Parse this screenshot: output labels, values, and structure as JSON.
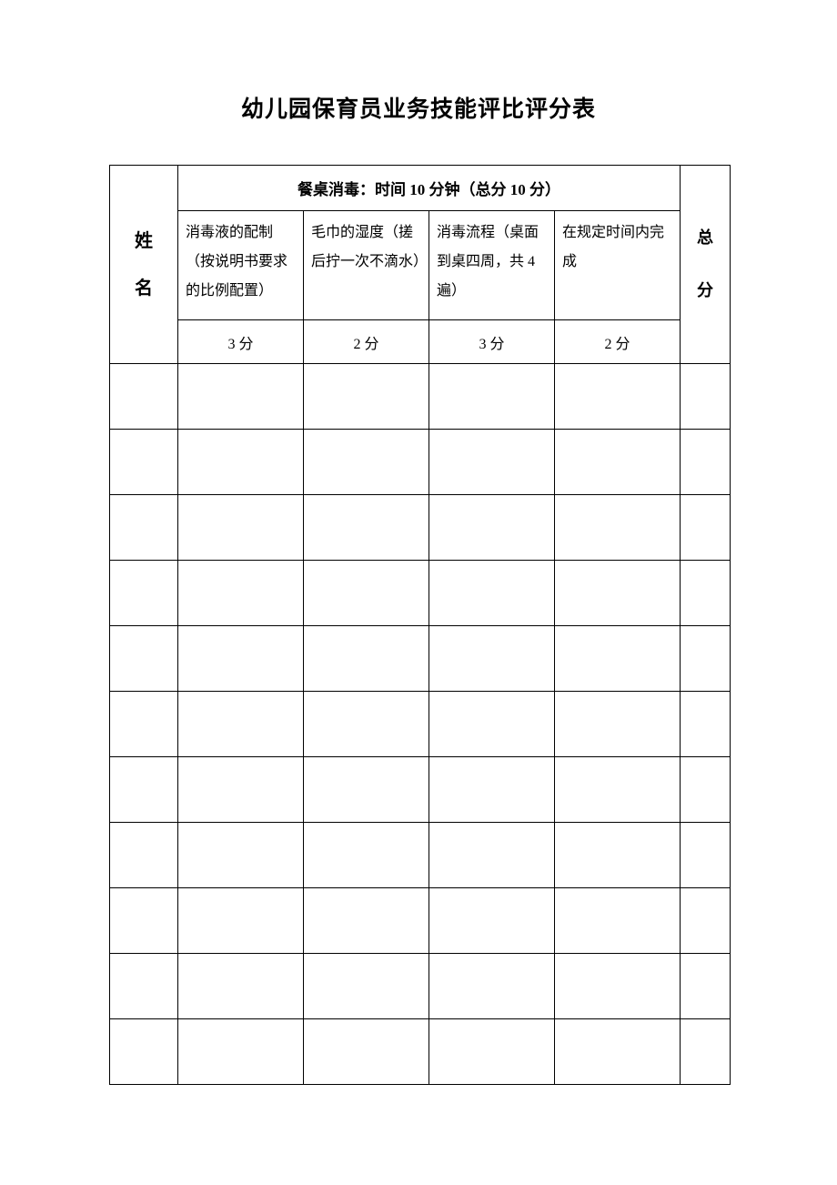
{
  "document": {
    "title": "幼儿园保育员业务技能评比评分表",
    "background_color": "#ffffff",
    "border_color": "#000000",
    "text_color": "#000000",
    "title_fontsize": 25,
    "body_fontsize": 16
  },
  "table": {
    "name_header": "姓\n名",
    "total_header": "总\n分",
    "section_header": "餐桌消毒：时间 10 分钟（总分 10 分）",
    "criteria": [
      {
        "description": "消毒液的配制（按说明书要求的比例配置）",
        "score": "3 分"
      },
      {
        "description": "毛巾的湿度（搓后拧一次不滴水）",
        "score": "2 分"
      },
      {
        "description": "消毒流程（桌面到桌四周，共 4 遍）",
        "score": "3 分"
      },
      {
        "description": "在规定时间内完成",
        "score": "2 分"
      }
    ],
    "empty_rows": 11,
    "column_widths": {
      "name": 75,
      "criteria": 138,
      "total": 55
    }
  }
}
